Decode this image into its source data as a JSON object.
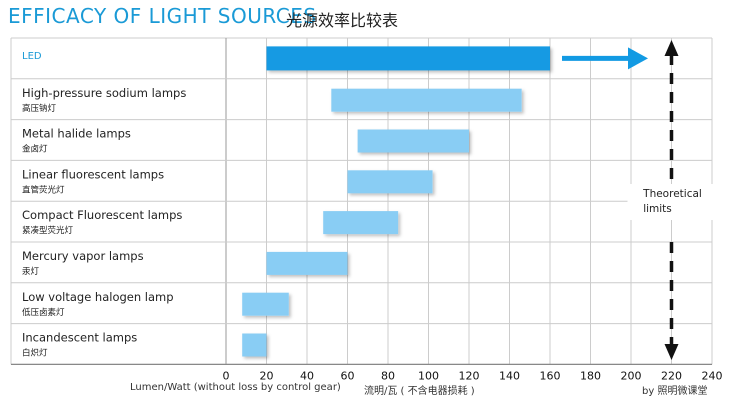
{
  "header": {
    "title_en": "EFFICACY OF LIGHT SOURCES",
    "title_zh": "光源效率比较表"
  },
  "footer": {
    "xlabel_en": "Lumen/Watt (without loss by control gear)",
    "xlabel_zh": "流明/瓦 ( 不含电器损耗 )",
    "credit": "by 照明微课堂"
  },
  "colors": {
    "title": "#1a9ad6",
    "led_bar": "#129ae3",
    "bar": "#89cdf4",
    "arrow": "#129ae3",
    "grid": "#cccccc",
    "dashed_line": "#111111"
  },
  "chart_data": {
    "type": "bar",
    "orientation": "horizontal floating ranges",
    "title": "EFFICACY OF LIGHT SOURCES",
    "xlabel": "Lumen/Watt (without loss by control gear)",
    "xlim": [
      0,
      240
    ],
    "xticks": [
      0,
      20,
      40,
      60,
      80,
      100,
      120,
      140,
      160,
      180,
      200,
      220,
      240
    ],
    "grid": true,
    "categories": [
      {
        "en": "LED",
        "zh": "",
        "min": 20,
        "max": 160,
        "highlight": true
      },
      {
        "en": "High-pressure sodium lamps",
        "zh": "高压钠灯",
        "min": 52,
        "max": 146
      },
      {
        "en": "Metal halide lamps",
        "zh": "金卤灯",
        "min": 65,
        "max": 120
      },
      {
        "en": "Linear fluorescent lamps",
        "zh": "直管荧光灯",
        "min": 60,
        "max": 102
      },
      {
        "en": "Compact Fluorescent lamps",
        "zh": "紧凑型荧光灯",
        "min": 48,
        "max": 85
      },
      {
        "en": "Mercury vapor lamps",
        "zh": "汞灯",
        "min": 20,
        "max": 60
      },
      {
        "en": "Low voltage halogen lamp",
        "zh": "低压卤素灯",
        "min": 8,
        "max": 31
      },
      {
        "en": "Incandescent lamps",
        "zh": "白炽灯",
        "min": 8,
        "max": 20
      }
    ],
    "annotations": {
      "theoretical_limit_value": 220,
      "theoretical_limit_label": "Theoretical limits"
    }
  }
}
